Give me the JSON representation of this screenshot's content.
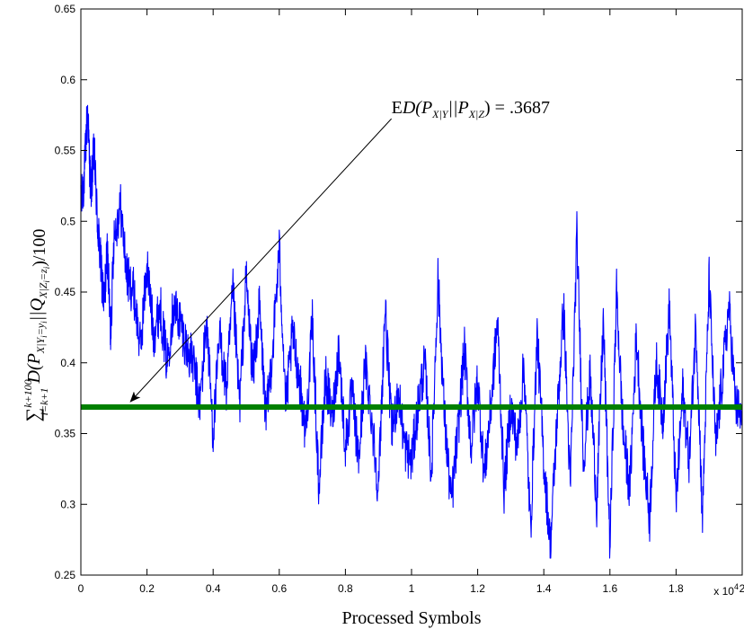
{
  "chart_data": {
    "type": "line",
    "xlabel": "Processed Symbols",
    "ylabel": "∑ D(P||Q)/100",
    "ylabel_parts": {
      "sum_symbol": "∑",
      "sum_upper": "k+100",
      "sum_lower": "i=k+1",
      "body": "D(P",
      "p_sub": "X|Y",
      "p_subsub": "i",
      "p_subeq": "=y",
      "p_subsub2": "i",
      "sep": "||Q",
      "q_sub": "X|Z",
      "q_subsub": "i",
      "q_subeq": "=z",
      "q_subsub2": "i",
      "tail": ")/100"
    },
    "xlim": [
      0,
      20000
    ],
    "ylim": [
      0.25,
      0.65
    ],
    "x_ticks": [
      0,
      2000,
      4000,
      6000,
      8000,
      10000,
      12000,
      14000,
      16000,
      18000,
      20000
    ],
    "x_tick_labels": [
      "0",
      "0.2",
      "0.4",
      "0.6",
      "0.8",
      "1",
      "1.2",
      "1.4",
      "1.6",
      "1.8",
      "2"
    ],
    "x_multiplier": {
      "base": "x 10",
      "exp": "4"
    },
    "y_ticks": [
      0.25,
      0.3,
      0.35,
      0.4,
      0.45,
      0.5,
      0.55,
      0.6,
      0.65
    ],
    "y_tick_labels": [
      "0.25",
      "0.3",
      "0.35",
      "0.4",
      "0.45",
      "0.5",
      "0.55",
      "0.6",
      "0.65"
    ],
    "grid": false,
    "series": [
      {
        "color": "#0000ff",
        "style": "noisy-line",
        "x": [
          0,
          100,
          200,
          300,
          400,
          500,
          600,
          700,
          800,
          900,
          1000,
          1200,
          1400,
          1600,
          1800,
          2000,
          2200,
          2400,
          2600,
          2800,
          3000,
          3200,
          3400,
          3600,
          3800,
          4000,
          4200,
          4400,
          4600,
          4800,
          5000,
          5200,
          5400,
          5600,
          5800,
          6000,
          6200,
          6400,
          6600,
          6800,
          7000,
          7200,
          7400,
          7600,
          7800,
          8000,
          8200,
          8400,
          8600,
          8800,
          9000,
          9200,
          9400,
          9600,
          9800,
          10000,
          10200,
          10400,
          10600,
          10800,
          11000,
          11200,
          11400,
          11600,
          11800,
          12000,
          12200,
          12400,
          12600,
          12800,
          13000,
          13200,
          13400,
          13600,
          13800,
          14000,
          14200,
          14400,
          14600,
          14800,
          15000,
          15200,
          15400,
          15600,
          15800,
          16000,
          16200,
          16400,
          16600,
          16800,
          17000,
          17200,
          17400,
          17600,
          17800,
          18000,
          18200,
          18400,
          18600,
          18800,
          19000,
          19200,
          19400,
          19600,
          19800,
          20000
        ],
        "y": [
          0.51,
          0.53,
          0.58,
          0.52,
          0.55,
          0.5,
          0.47,
          0.44,
          0.48,
          0.42,
          0.49,
          0.51,
          0.46,
          0.45,
          0.41,
          0.47,
          0.42,
          0.44,
          0.4,
          0.44,
          0.43,
          0.41,
          0.4,
          0.37,
          0.43,
          0.35,
          0.42,
          0.38,
          0.45,
          0.37,
          0.46,
          0.39,
          0.44,
          0.36,
          0.41,
          0.48,
          0.37,
          0.42,
          0.39,
          0.35,
          0.43,
          0.31,
          0.39,
          0.36,
          0.41,
          0.34,
          0.38,
          0.33,
          0.4,
          0.36,
          0.31,
          0.44,
          0.35,
          0.38,
          0.34,
          0.33,
          0.37,
          0.4,
          0.32,
          0.46,
          0.36,
          0.3,
          0.35,
          0.41,
          0.34,
          0.39,
          0.32,
          0.37,
          0.43,
          0.31,
          0.37,
          0.34,
          0.4,
          0.28,
          0.42,
          0.33,
          0.27,
          0.36,
          0.44,
          0.31,
          0.49,
          0.33,
          0.39,
          0.3,
          0.43,
          0.27,
          0.45,
          0.35,
          0.31,
          0.42,
          0.34,
          0.29,
          0.4,
          0.36,
          0.44,
          0.3,
          0.38,
          0.33,
          0.43,
          0.29,
          0.46,
          0.34,
          0.39,
          0.44,
          0.37,
          0.36
        ]
      },
      {
        "color": "#008000",
        "style": "reference-line",
        "x": [
          0,
          20000
        ],
        "y": [
          0.3687,
          0.3687
        ]
      }
    ],
    "annotation": {
      "prefix": "E",
      "body": "D(P",
      "p_sub": "X|Y",
      "sep": "||P",
      "q_sub": "X|Z",
      "tail": ") = .3687",
      "arrow_from": [
        9800,
        0.575
      ],
      "arrow_to": [
        1500,
        0.37
      ],
      "text_anchor": [
        9800,
        0.575
      ]
    }
  }
}
